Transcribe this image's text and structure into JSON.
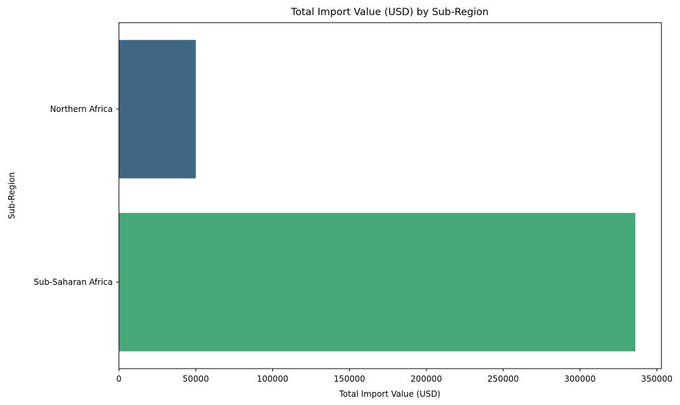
{
  "chart_data": {
    "type": "bar",
    "orientation": "horizontal",
    "title": "Total Import Value (USD) by Sub-Region",
    "xlabel": "Total Import Value (USD)",
    "ylabel": "Sub-Region",
    "categories": [
      "Northern Africa",
      "Sub-Saharan Africa"
    ],
    "values": [
      50000,
      336000
    ],
    "colors": [
      "#3e6783",
      "#46a778"
    ],
    "xlim": [
      0,
      353000
    ],
    "xticks": [
      0,
      50000,
      100000,
      150000,
      200000,
      250000,
      300000,
      350000
    ],
    "grid": false
  }
}
